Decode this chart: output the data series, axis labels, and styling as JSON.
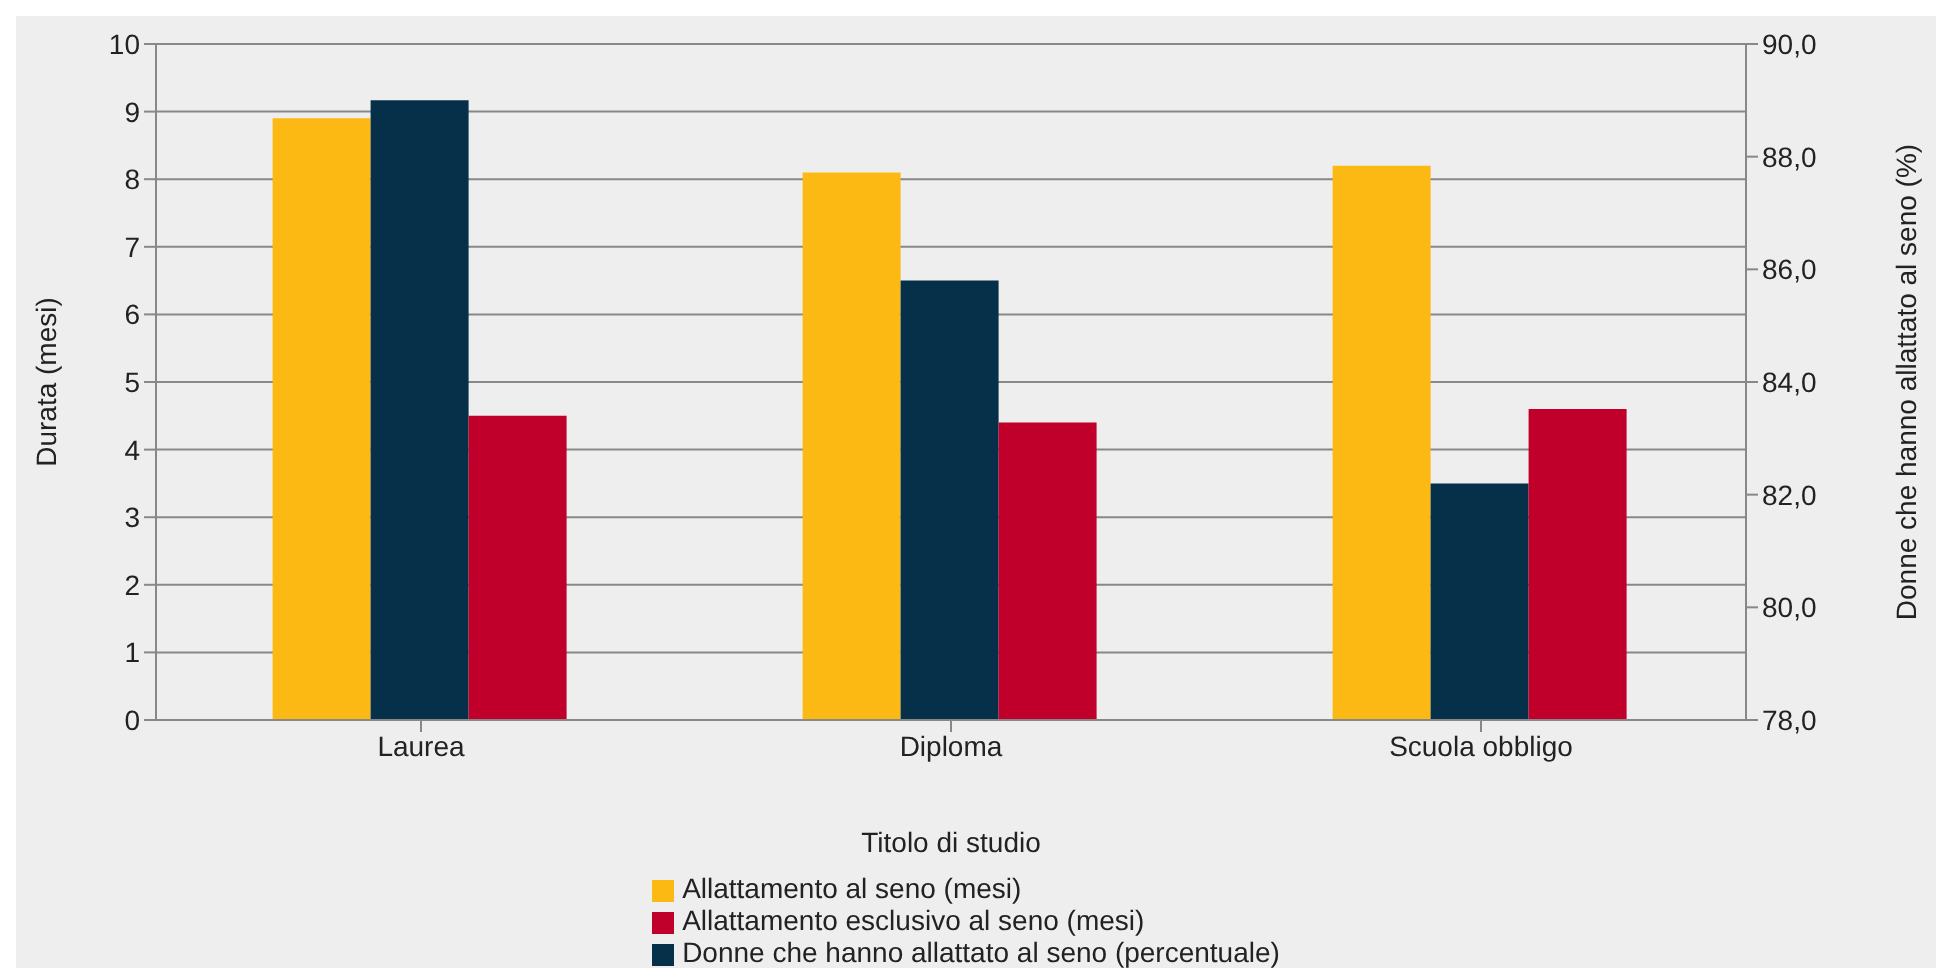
{
  "chart_data": {
    "type": "bar",
    "xlabel": "Titolo di studio",
    "ylabel": "Durata (mesi)",
    "y2label": "Donne che hanno allattato al seno (%)",
    "categories": [
      "Laurea",
      "Diploma",
      "Scuola obbligo"
    ],
    "series": [
      {
        "name": "Allattamento al seno (mesi)",
        "color": "#fdb913",
        "values": [
          8.9,
          8.1,
          8.2
        ]
      },
      {
        "name": "Donne che hanno allattato al seno (percentuale)",
        "color": "#06304a",
        "values": [
          89.0,
          85.8,
          82.2
        ],
        "axis": "y2"
      },
      {
        "name": "Allattamento esclusivo al seno (mesi)",
        "color": "#c0002a",
        "values": [
          4.5,
          4.4,
          4.6
        ]
      }
    ],
    "ylim": [
      0,
      10
    ],
    "yticks": [
      0,
      1,
      2,
      3,
      4,
      5,
      6,
      7,
      8,
      9,
      10
    ],
    "y2lim": [
      78,
      90
    ],
    "y2ticks": [
      {
        "value": 78,
        "label": "78,0"
      },
      {
        "value": 80,
        "label": "80,0"
      },
      {
        "value": 82,
        "label": "82,0"
      },
      {
        "value": 84,
        "label": "84,0"
      },
      {
        "value": 86,
        "label": "86,0"
      },
      {
        "value": 88,
        "label": "88,0"
      },
      {
        "value": 90,
        "label": "90,0"
      }
    ],
    "grid": "y",
    "legend": "bottom"
  }
}
